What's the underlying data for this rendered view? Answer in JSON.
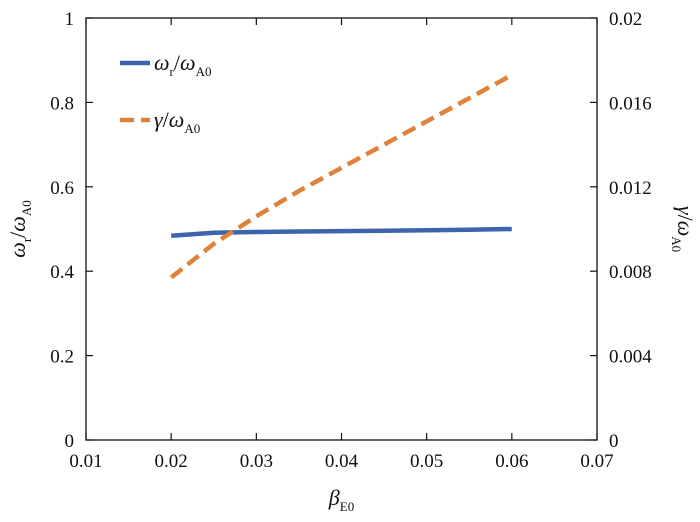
{
  "chart_data": {
    "type": "line",
    "x_axis": {
      "label": {
        "base": "β",
        "sub": "E0"
      },
      "range": [
        0.01,
        0.07
      ],
      "ticks": [
        0.01,
        0.02,
        0.03,
        0.04,
        0.05,
        0.06,
        0.07
      ],
      "tick_labels": [
        "0.01",
        "0.02",
        "0.03",
        "0.04",
        "0.05",
        "0.06",
        "0.07"
      ]
    },
    "y_left": {
      "label": {
        "num": "ω",
        "num_sub": "r",
        "den": "ω",
        "den_sub": "A0"
      },
      "range": [
        0,
        1
      ],
      "ticks": [
        0,
        0.2,
        0.4,
        0.6,
        0.8,
        1
      ],
      "tick_labels": [
        "0",
        "0.2",
        "0.4",
        "0.6",
        "0.8",
        "1"
      ]
    },
    "y_right": {
      "label": {
        "num": "γ",
        "den": "ω",
        "den_sub": "A0"
      },
      "range": [
        0,
        0.02
      ],
      "ticks": [
        0,
        0.004,
        0.008,
        0.012,
        0.016,
        0.02
      ],
      "tick_labels": [
        "0",
        "0.004",
        "0.008",
        "0.012",
        "0.016",
        "0.02"
      ]
    },
    "grid": false,
    "legend_position": "top-left",
    "series": [
      {
        "legend": {
          "num": "ω",
          "num_sub": "r",
          "den": "ω",
          "den_sub": "A0"
        },
        "axis": "left",
        "color": "#3d65ad",
        "dash": "solid",
        "x": [
          0.02,
          0.025,
          0.03,
          0.035,
          0.04,
          0.045,
          0.05,
          0.055,
          0.06
        ],
        "y": [
          0.484,
          0.491,
          0.493,
          0.494,
          0.495,
          0.496,
          0.497,
          0.498,
          0.5
        ]
      },
      {
        "legend": {
          "num": "γ",
          "den": "ω",
          "den_sub": "A0"
        },
        "axis": "right",
        "color": "#e0823a",
        "dash": "dashed",
        "x": [
          0.02,
          0.025,
          0.03,
          0.035,
          0.04,
          0.045,
          0.05,
          0.055,
          0.06
        ],
        "y": [
          0.0077,
          0.0093,
          0.0106,
          0.0118,
          0.0129,
          0.014,
          0.0151,
          0.0162,
          0.0173
        ]
      }
    ]
  }
}
